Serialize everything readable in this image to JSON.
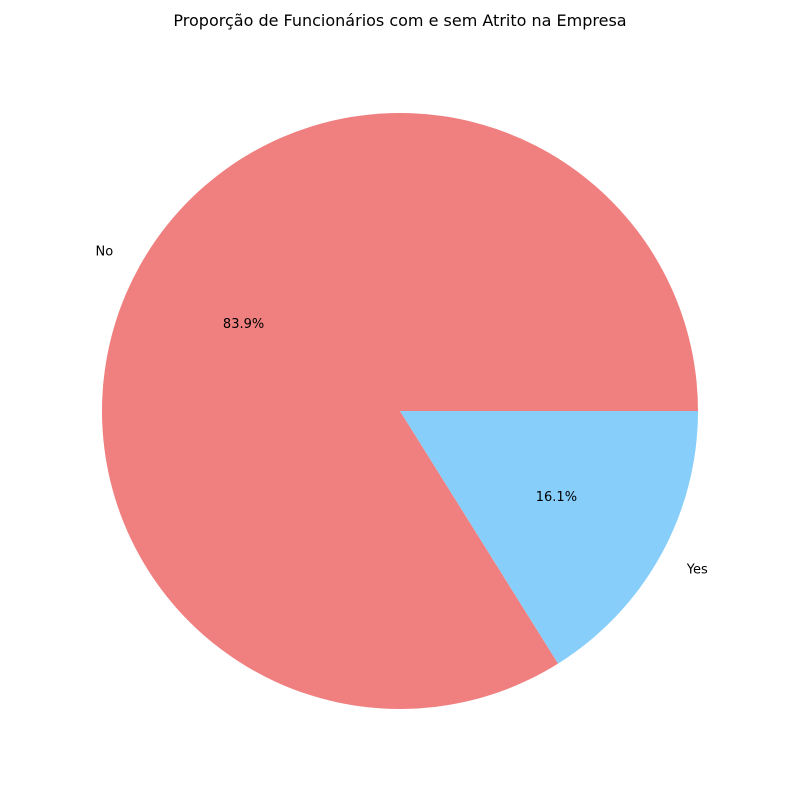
{
  "chart_data": {
    "type": "pie",
    "title": "Proporção de Funcionários com e sem Atrito na Empresa",
    "slices": [
      {
        "label": "No",
        "value": 83.9,
        "percent_label": "83.9%",
        "color": "#f08080"
      },
      {
        "label": "Yes",
        "value": 16.1,
        "percent_label": "16.1%",
        "color": "#87cefa"
      }
    ],
    "start_angle_deg": 0,
    "direction": "counterclockwise",
    "legend": "none"
  }
}
